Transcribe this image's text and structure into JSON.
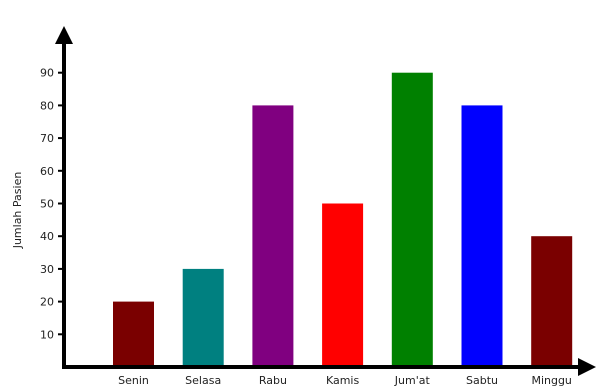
{
  "chart_data": {
    "type": "bar",
    "title": "",
    "xlabel": "",
    "ylabel": "Jumlah Pasien",
    "categories": [
      "Senin",
      "Selasa",
      "Rabu",
      "Kamis",
      "Jum'at",
      "Sabtu",
      "Minggu"
    ],
    "values": [
      20,
      30,
      80,
      50,
      90,
      80,
      40
    ],
    "colors": [
      "#7a0000",
      "#008080",
      "#800080",
      "#ff0000",
      "#008000",
      "#0000ff",
      "#7a0000"
    ],
    "yticks": [
      10,
      20,
      30,
      40,
      50,
      60,
      70,
      80,
      90
    ],
    "ylim": [
      0,
      100
    ],
    "grid": false,
    "legend": "none"
  }
}
